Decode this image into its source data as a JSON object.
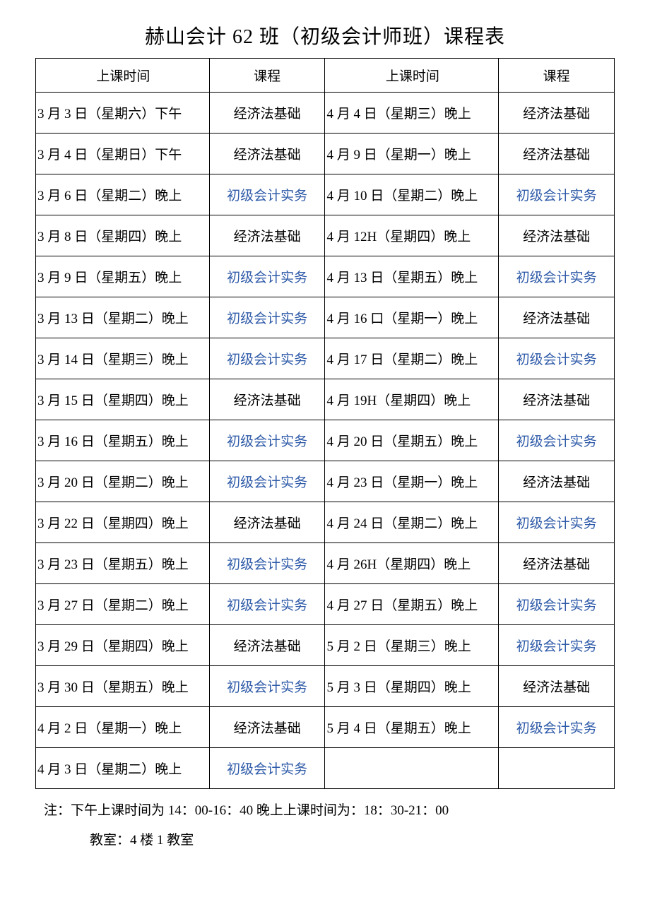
{
  "title": "赫山会计 62 班（初级会计师班）课程表",
  "headers": {
    "time1": "上课时间",
    "course1": "课程",
    "time2": "上课时间",
    "course2": "课程"
  },
  "courses": {
    "econ": "经济法基础",
    "acct": "初级会计实务"
  },
  "colors": {
    "econ": "#000000",
    "acct": "#2e5aa8"
  },
  "rows": [
    {
      "t1": "3 月 3 日（星期六）下午",
      "c1": "econ",
      "t2": "4 月 4 日（星期三）晚上",
      "c2": "econ"
    },
    {
      "t1": "3 月 4 日（星期日）下午",
      "c1": "econ",
      "t2": "4 月 9 日（星期一）晚上",
      "c2": "econ"
    },
    {
      "t1": "3 月 6 日（星期二）晚上",
      "c1": "acct",
      "t2": "4 月 10 日（星期二）晚上",
      "c2": "acct"
    },
    {
      "t1": "3 月 8 日（星期四）晚上",
      "c1": "econ",
      "t2": "4 月 12H（星期四）晚上",
      "c2": "econ"
    },
    {
      "t1": "3 月 9 日（星期五）晚上",
      "c1": "acct",
      "t2": "4 月 13 日（星期五）晚上",
      "c2": "acct"
    },
    {
      "t1": "3 月 13 日（星期二）晚上",
      "c1": "acct",
      "t2": "4 月 16 口（星期一）晚上",
      "c2": "econ"
    },
    {
      "t1": "3 月 14 日（星期三）晚上",
      "c1": "acct",
      "t2": "4 月 17 日（星期二）晚上",
      "c2": "acct"
    },
    {
      "t1": "3 月 15 日（星期四）晚上",
      "c1": "econ",
      "t2": "4 月 19H（星期四）晚上",
      "c2": "econ"
    },
    {
      "t1": "3 月 16 日（星期五）晚上",
      "c1": "acct",
      "t2": "4 月 20 日（星期五）晚上",
      "c2": "acct"
    },
    {
      "t1": "3 月 20 日（星期二）晚上",
      "c1": "acct",
      "t2": "4 月 23 日（星期一）晚上",
      "c2": "econ"
    },
    {
      "t1": "3 月 22 日（星期四）晚上",
      "c1": "econ",
      "t2": "4 月 24 日（星期二）晚上",
      "c2": "acct"
    },
    {
      "t1": "3 月 23 日（星期五）晚上",
      "c1": "acct",
      "t2": "4 月 26H（星期四）晚上",
      "c2": "econ"
    },
    {
      "t1": "3 月 27 日（星期二）晚上",
      "c1": "acct",
      "t2": "4 月 27 日（星期五）晚上",
      "c2": "acct"
    },
    {
      "t1": "3 月 29 日（星期四）晚上",
      "c1": "econ",
      "t2": "5 月 2 日（星期三）晚上",
      "c2": "acct"
    },
    {
      "t1": "3 月 30 日（星期五）晚上",
      "c1": "acct",
      "t2": "5 月 3 日（星期四）晚上",
      "c2": "econ"
    },
    {
      "t1": "4 月 2 日（星期一）晚上",
      "c1": "econ",
      "t2": "5 月 4 日（星期五）晚上",
      "c2": "acct"
    },
    {
      "t1": "4 月 3 日（星期二）晚上",
      "c1": "acct",
      "t2": "",
      "c2": ""
    }
  ],
  "notes": {
    "line1": "注：下午上课时间为 14：00-16：40 晚上上课时间为：18：30-21：00",
    "line2": "教室：4 楼 1 教室"
  }
}
